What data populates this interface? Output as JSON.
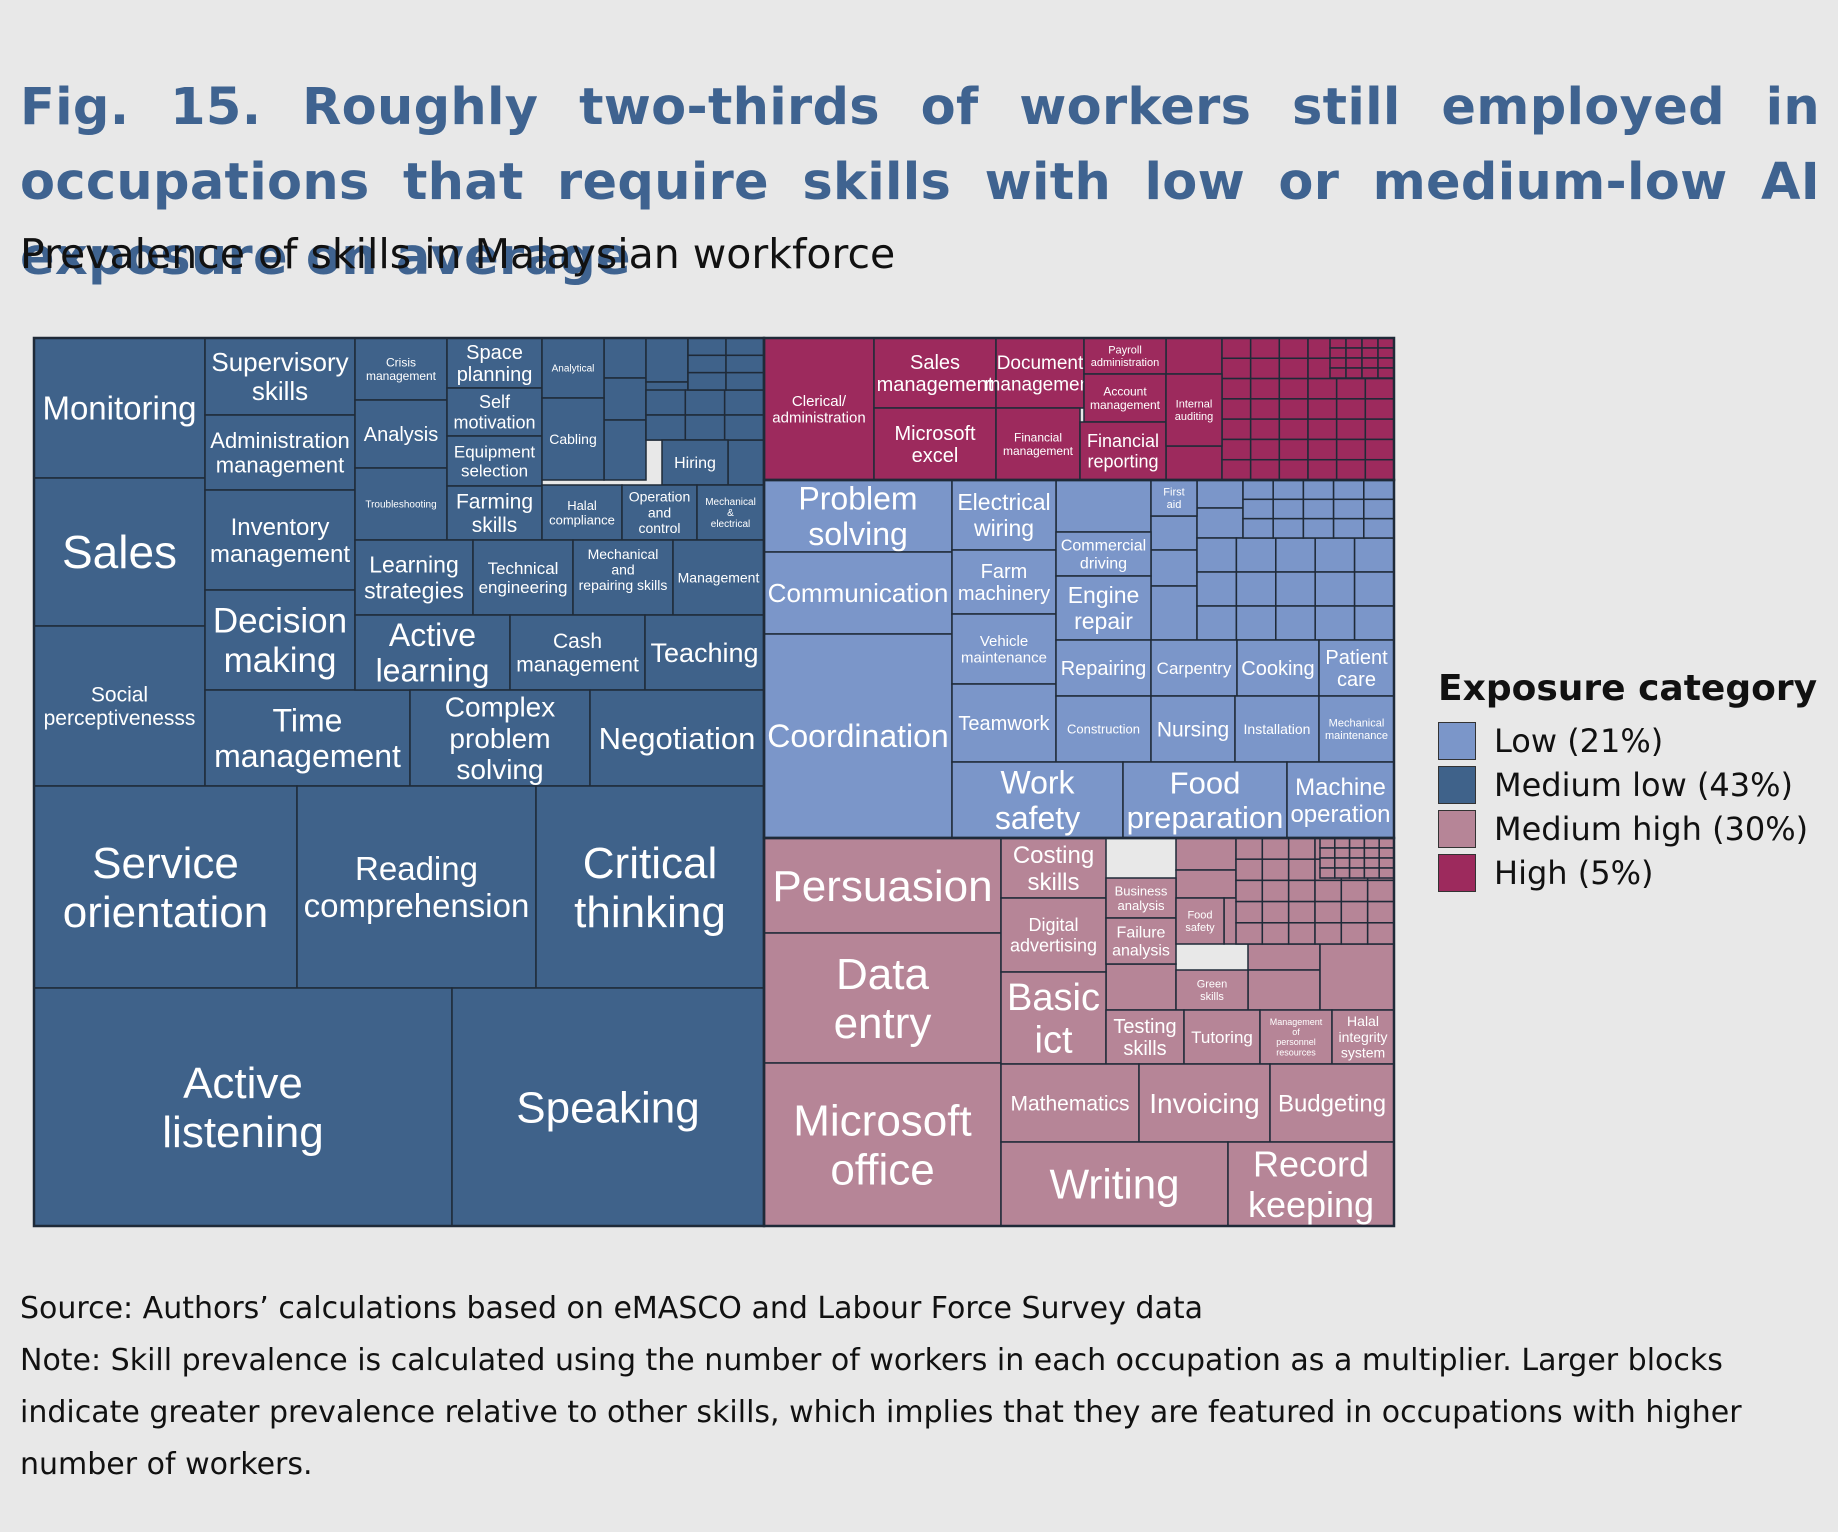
{
  "title": "Fig. 15. Roughly two-thirds of workers still employed in occupations that require skills with low or medium-low AI exposure on average",
  "subtitle": "Prevalence of skills in Malaysian workforce",
  "source": "Source: Authors’ calculations based on eMASCO and Labour Force Survey data",
  "note": "Note: Skill prevalence is calculated using the number of workers in each occupation as a multiplier. Larger blocks indicate greater prevalence relative to other skills, which implies that they are featured in occupations with higher number of workers.",
  "legend": {
    "title": "Exposure category",
    "items": [
      {
        "label": "Low (21%)",
        "color": "#7b96c9"
      },
      {
        "label": "Medium low (43%)",
        "color": "#3f628a"
      },
      {
        "label": "Medium high (30%)",
        "color": "#b68597"
      },
      {
        "label": "High (5%)",
        "color": "#9d2a5d"
      }
    ]
  },
  "chart_data": {
    "type": "treemap",
    "categories": [
      {
        "name": "Medium low",
        "share": 43,
        "color": "#3f628a",
        "skills": [
          "Monitoring",
          "Sales",
          "Social perceptivenesss",
          "Supervisory skills",
          "Administration management",
          "Inventory management",
          "Decision making",
          "Time management",
          "Crisis management",
          "Analysis",
          "Troubleshooting",
          "Space planning",
          "Self motivation",
          "Equipment selection",
          "Farming skills",
          "Analytical",
          "Cabling",
          "Hiring",
          "Halal compliance",
          "Operation and control",
          "Mechanical & electrical",
          "Learning strategies",
          "Technical engineering",
          "Mechanical and repairing skills",
          "Management",
          "Active learning",
          "Cash management",
          "Teaching",
          "Complex problem solving",
          "Negotiation",
          "Service orientation",
          "Reading comprehension",
          "Critical thinking",
          "Active listening",
          "Speaking"
        ]
      },
      {
        "name": "High",
        "share": 5,
        "color": "#9d2a5d",
        "skills": [
          "Clerical/ administration",
          "Sales management",
          "Document management",
          "Microsoft excel",
          "Financial management",
          "Payroll administration",
          "Account management",
          "Financial reporting",
          "Internal auditing"
        ]
      },
      {
        "name": "Low",
        "share": 21,
        "color": "#7b96c9",
        "skills": [
          "Problem solving",
          "Communication",
          "Coordination",
          "Electrical wiring",
          "Farm machinery",
          "Vehicle maintenance",
          "Teamwork",
          "Commercial driving",
          "Engine repair",
          "First aid",
          "Repairing",
          "Carpentry",
          "Cooking",
          "Patient care",
          "Construction",
          "Nursing",
          "Installation",
          "Mechanical maintenance",
          "Work safety",
          "Food preparation",
          "Machine operation"
        ]
      },
      {
        "name": "Medium high",
        "share": 30,
        "color": "#b68597",
        "skills": [
          "Persuasion",
          "Data entry",
          "Microsoft office",
          "Costing skills",
          "Digital advertising",
          "Basic ict",
          "Business analysis",
          "Failure analysis",
          "Food safety",
          "Green skills",
          "Testing skills",
          "Tutoring",
          "Management of personnel resources",
          "Halal integrity system",
          "Mathematics",
          "Invoicing",
          "Budgeting",
          "Writing",
          "Record keeping"
        ]
      }
    ]
  }
}
